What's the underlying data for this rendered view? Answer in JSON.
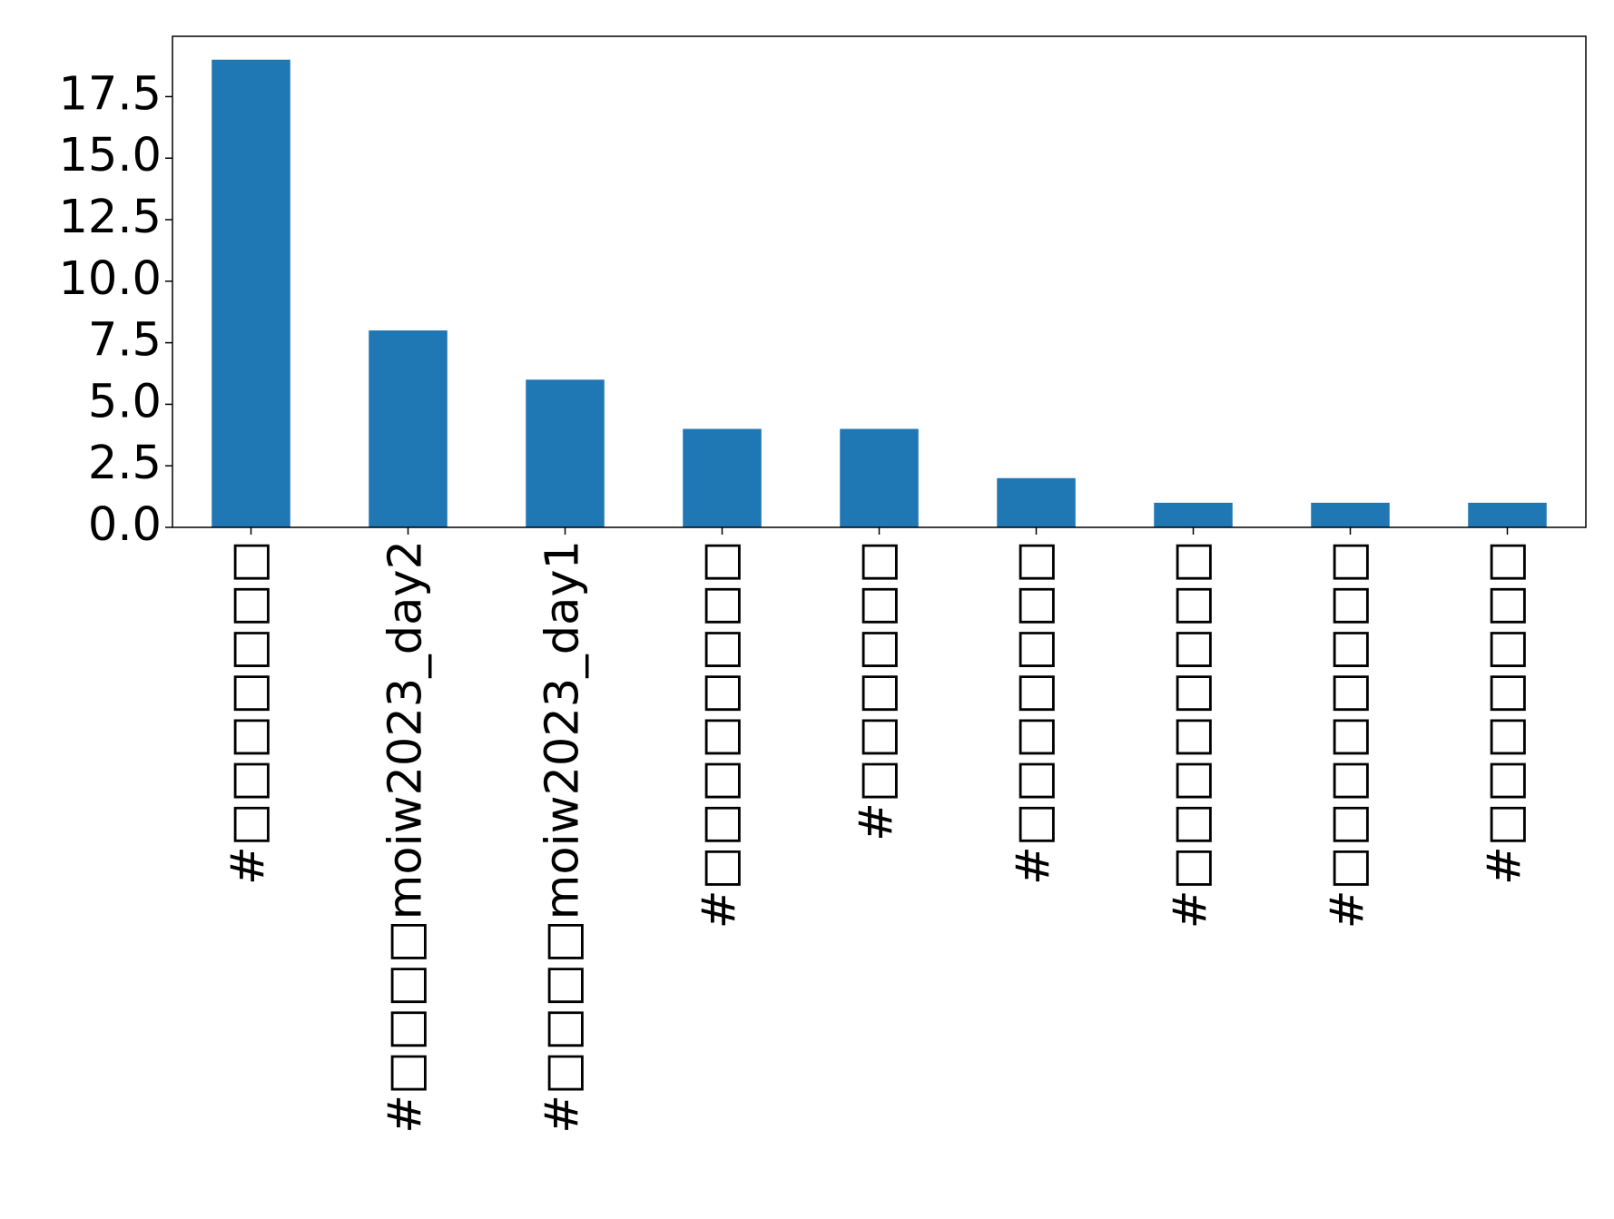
{
  "chart_data": {
    "type": "bar",
    "categories": [
      "#□□□□□□□",
      "#□□□□moiw2023_day2",
      "#□□□□moiw2023_day1",
      "#□□□□□□□□",
      "#□□□□□□",
      "#□□□□□□□",
      "#□□□□□□□□",
      "#□□□□□□□□",
      "#□□□□□□□"
    ],
    "values": [
      19,
      8,
      6,
      4,
      4,
      2,
      1,
      1,
      1
    ],
    "color": "#1f77b4",
    "ylim": [
      0,
      19.95
    ],
    "yticks": [
      {
        "value": 0,
        "label": "0.0"
      },
      2.5,
      {
        "value": 5,
        "label": "5.0"
      },
      7.5,
      {
        "value": 10,
        "label": "10.0"
      },
      12.5,
      {
        "value": 15,
        "label": "15.0"
      },
      17.5
    ],
    "grid": false
  }
}
